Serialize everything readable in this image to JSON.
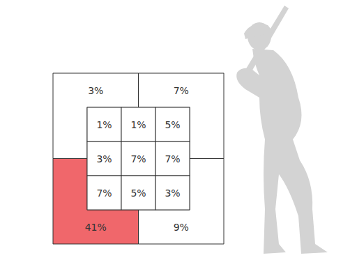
{
  "chart_data": {
    "type": "zone",
    "cells": [
      [
        1,
        1,
        5
      ],
      [
        3,
        7,
        7
      ],
      [
        7,
        5,
        3
      ]
    ],
    "cell_labels": [
      [
        "1%",
        "1%",
        "5%"
      ],
      [
        "3%",
        "7%",
        "7%"
      ],
      [
        "7%",
        "5%",
        "3%"
      ]
    ],
    "outer_values": [
      3,
      7,
      41,
      9
    ],
    "outer_labels": [
      "3%",
      "7%",
      "41%",
      "9%"
    ],
    "outer_colors": [
      "#ffffff",
      "#ffffff",
      "#f0676b",
      "#ffffff"
    ]
  }
}
